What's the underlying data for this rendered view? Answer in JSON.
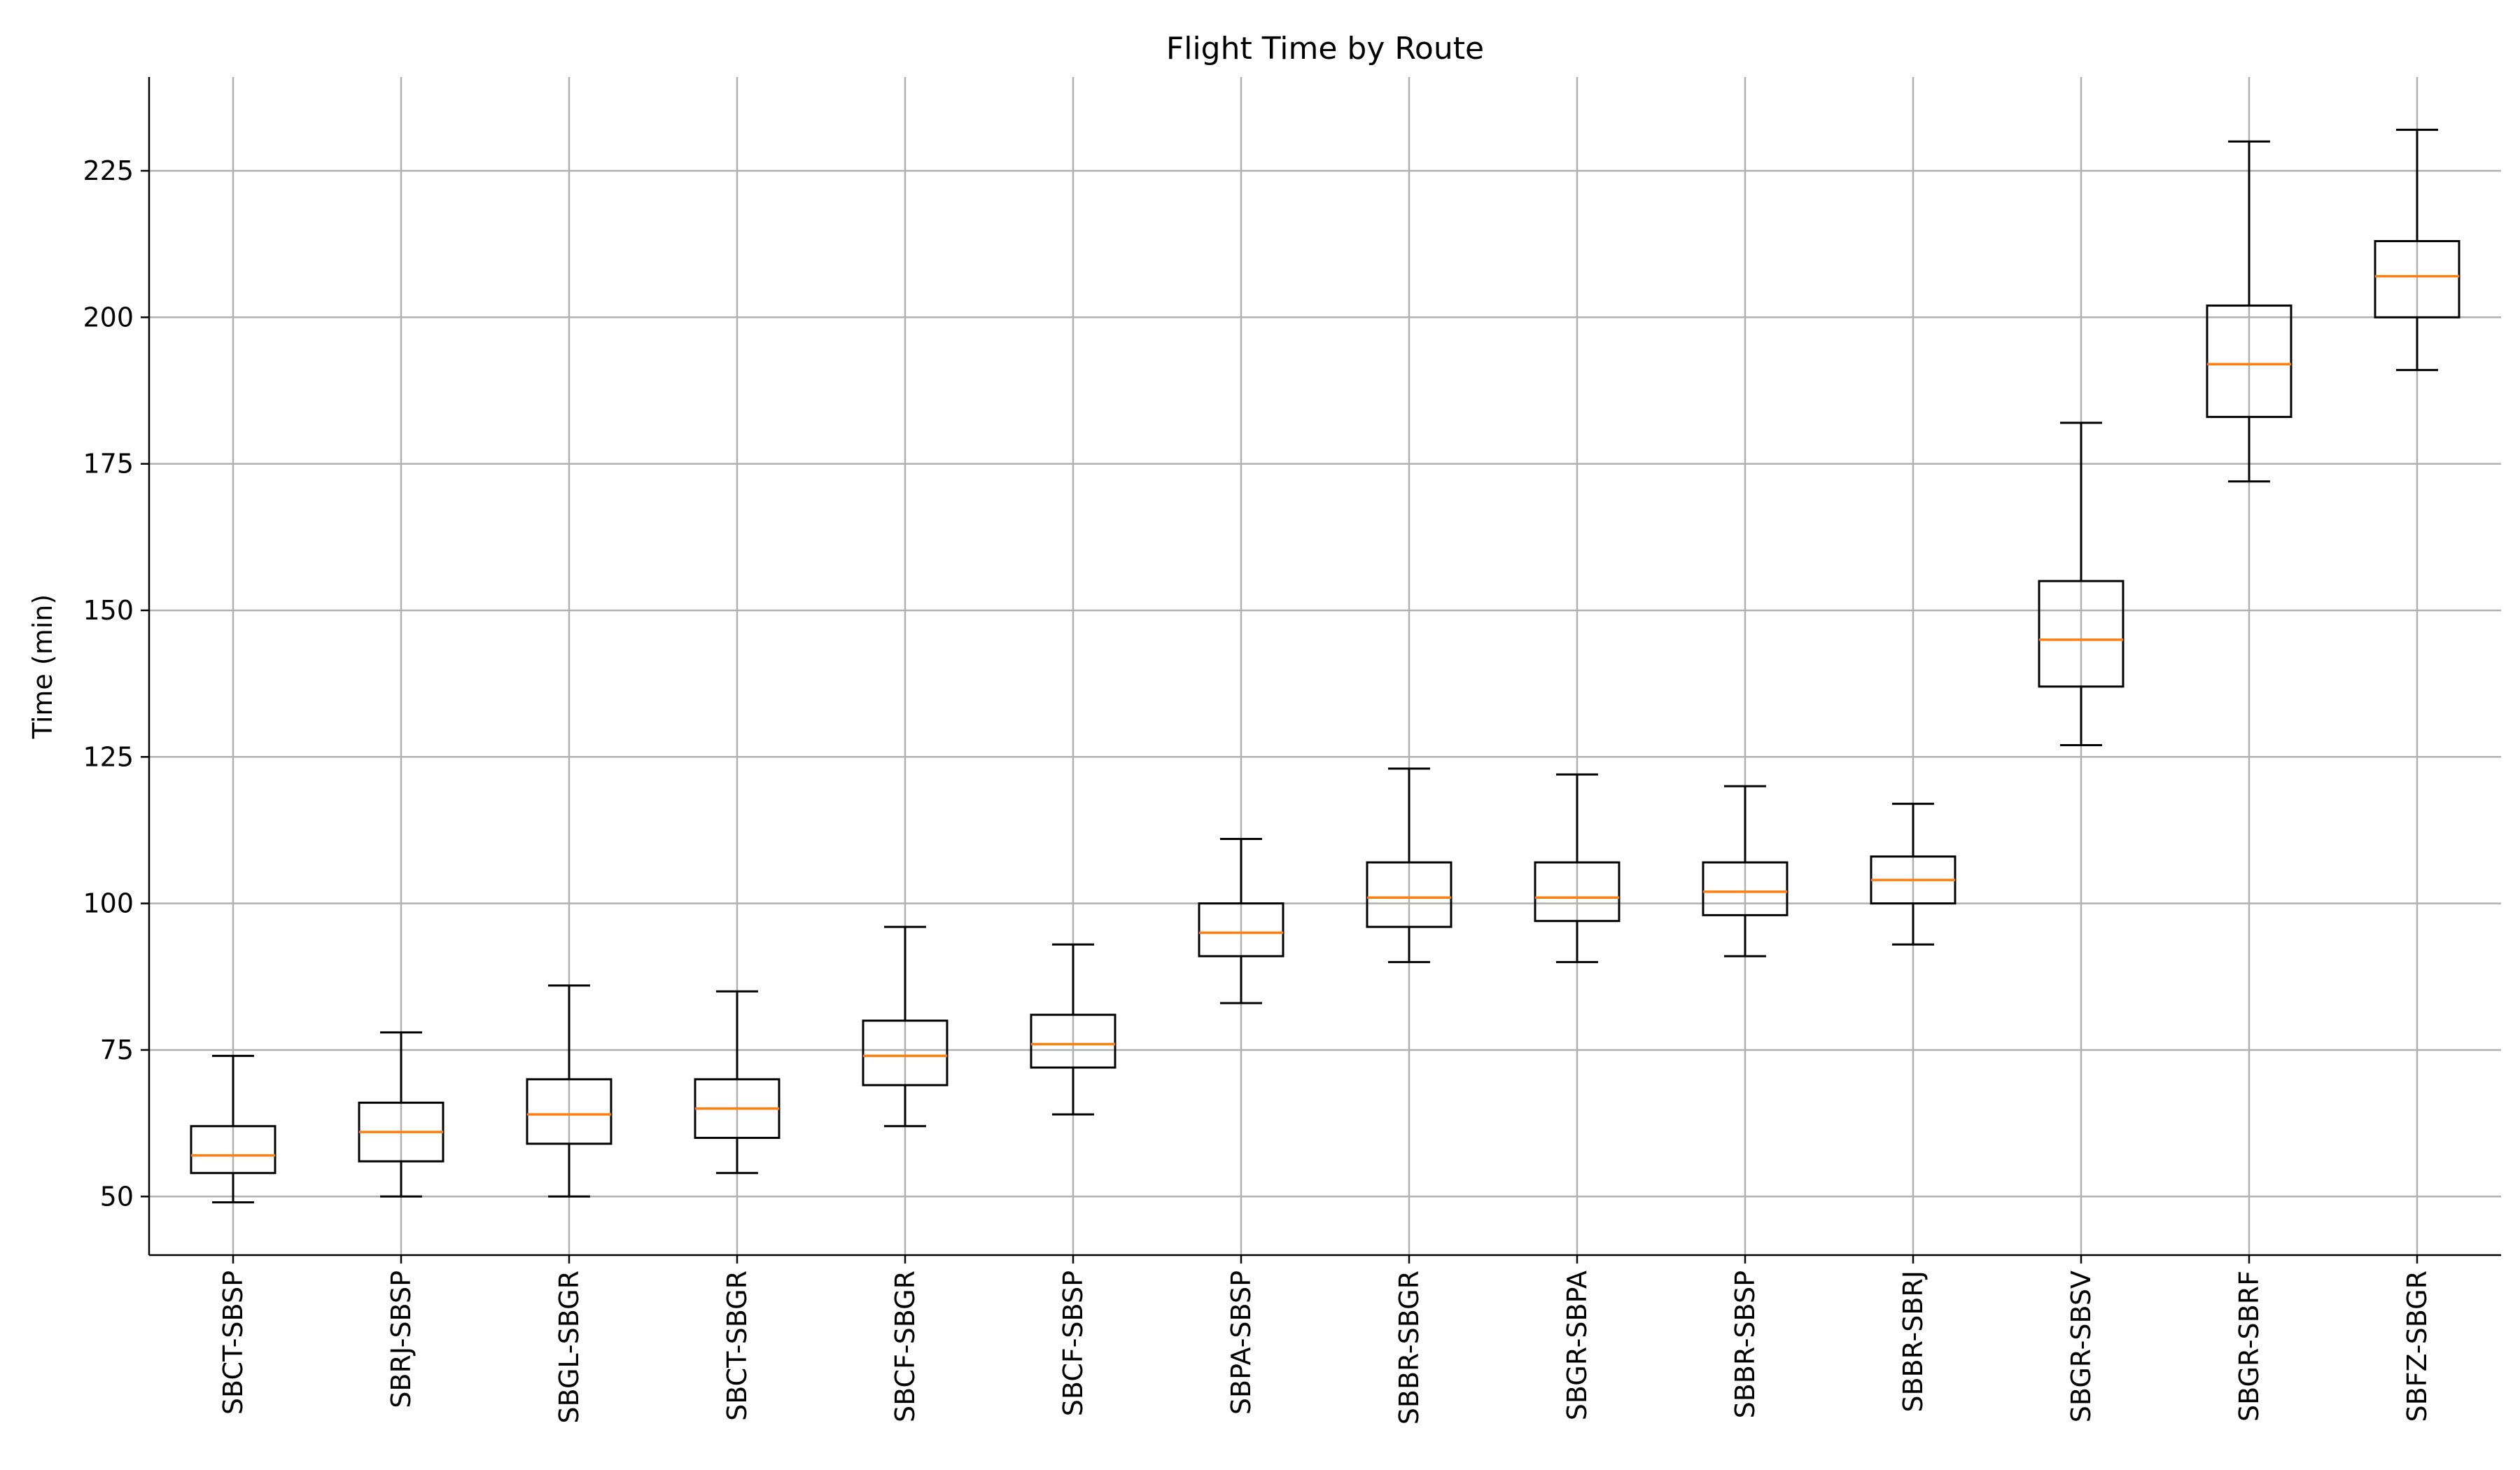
{
  "chart_data": {
    "type": "box",
    "title": "Flight Time by Route",
    "xlabel": "",
    "ylabel": "Time (min)",
    "ylim": [
      40,
      241
    ],
    "yticks": [
      50,
      75,
      100,
      125,
      150,
      175,
      200,
      225
    ],
    "grid": true,
    "median_color": "#ff7f0e",
    "box_color": "#000000",
    "grid_color": "#b0b0b0",
    "categories": [
      "SBCT-SBSP",
      "SBRJ-SBSP",
      "SBGL-SBGR",
      "SBCT-SBGR",
      "SBCF-SBGR",
      "SBCF-SBSP",
      "SBPA-SBSP",
      "SBBR-SBGR",
      "SBGR-SBPA",
      "SBBR-SBSP",
      "SBBR-SBRJ",
      "SBGR-SBSV",
      "SBGR-SBRF",
      "SBFZ-SBGR"
    ],
    "boxes": [
      {
        "whislo": 49,
        "q1": 54,
        "med": 57,
        "q3": 62,
        "whishi": 74
      },
      {
        "whislo": 50,
        "q1": 56,
        "med": 61,
        "q3": 66,
        "whishi": 78
      },
      {
        "whislo": 50,
        "q1": 59,
        "med": 64,
        "q3": 70,
        "whishi": 86
      },
      {
        "whislo": 54,
        "q1": 60,
        "med": 65,
        "q3": 70,
        "whishi": 85
      },
      {
        "whislo": 62,
        "q1": 69,
        "med": 74,
        "q3": 80,
        "whishi": 96
      },
      {
        "whislo": 64,
        "q1": 72,
        "med": 76,
        "q3": 81,
        "whishi": 93
      },
      {
        "whislo": 83,
        "q1": 91,
        "med": 95,
        "q3": 100,
        "whishi": 111
      },
      {
        "whislo": 90,
        "q1": 96,
        "med": 101,
        "q3": 107,
        "whishi": 123
      },
      {
        "whislo": 90,
        "q1": 97,
        "med": 101,
        "q3": 107,
        "whishi": 122
      },
      {
        "whislo": 91,
        "q1": 98,
        "med": 102,
        "q3": 107,
        "whishi": 120
      },
      {
        "whislo": 93,
        "q1": 100,
        "med": 104,
        "q3": 108,
        "whishi": 117
      },
      {
        "whislo": 127,
        "q1": 137,
        "med": 145,
        "q3": 155,
        "whishi": 182
      },
      {
        "whislo": 172,
        "q1": 183,
        "med": 192,
        "q3": 202,
        "whishi": 230
      },
      {
        "whislo": 191,
        "q1": 200,
        "med": 207,
        "q3": 213,
        "whishi": 232
      }
    ]
  }
}
